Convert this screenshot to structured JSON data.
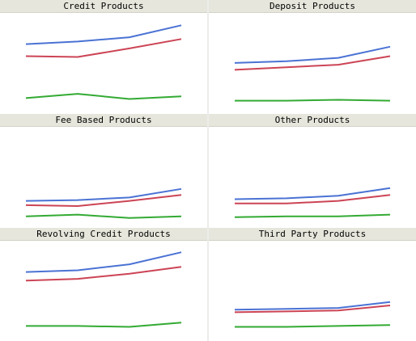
{
  "chart_data": [
    {
      "type": "line",
      "title": "Credit Products",
      "x": [
        1,
        2,
        3,
        4
      ],
      "ylim": [
        0,
        100
      ],
      "series": [
        {
          "color": "#4a72d4",
          "values": [
            73,
            76,
            81,
            95
          ]
        },
        {
          "color": "#cc4455",
          "values": [
            59,
            58,
            68,
            79
          ]
        },
        {
          "color": "#33aa33",
          "values": [
            10,
            15,
            9,
            12
          ]
        }
      ]
    },
    {
      "type": "line",
      "title": "Deposit Products",
      "x": [
        1,
        2,
        3,
        4
      ],
      "ylim": [
        0,
        100
      ],
      "series": [
        {
          "color": "#4a72d4",
          "values": [
            51,
            53,
            57,
            70
          ]
        },
        {
          "color": "#cc4455",
          "values": [
            43,
            46,
            49,
            59
          ]
        },
        {
          "color": "#33aa33",
          "values": [
            7,
            7,
            8,
            7
          ]
        }
      ]
    },
    {
      "type": "line",
      "title": "Fee Based Products",
      "x": [
        1,
        2,
        3,
        4
      ],
      "ylim": [
        0,
        100
      ],
      "series": [
        {
          "color": "#4a72d4",
          "values": [
            23,
            24,
            27,
            37
          ]
        },
        {
          "color": "#cc4455",
          "values": [
            18,
            17,
            23,
            30
          ]
        },
        {
          "color": "#33aa33",
          "values": [
            5,
            7,
            3,
            5
          ]
        }
      ]
    },
    {
      "type": "line",
      "title": "Other Products",
      "x": [
        1,
        2,
        3,
        4
      ],
      "ylim": [
        0,
        100
      ],
      "series": [
        {
          "color": "#4a72d4",
          "values": [
            25,
            26,
            29,
            38
          ]
        },
        {
          "color": "#cc4455",
          "values": [
            20,
            20,
            23,
            30
          ]
        },
        {
          "color": "#33aa33",
          "values": [
            4,
            5,
            5,
            7
          ]
        }
      ]
    },
    {
      "type": "line",
      "title": "Revolving Credit Products",
      "x": [
        1,
        2,
        3,
        4
      ],
      "ylim": [
        0,
        100
      ],
      "series": [
        {
          "color": "#4a72d4",
          "values": [
            73,
            75,
            82,
            96
          ]
        },
        {
          "color": "#cc4455",
          "values": [
            63,
            65,
            71,
            79
          ]
        },
        {
          "color": "#33aa33",
          "values": [
            10,
            10,
            9,
            14
          ]
        }
      ]
    },
    {
      "type": "line",
      "title": "Third Party Products",
      "x": [
        1,
        2,
        3,
        4
      ],
      "ylim": [
        0,
        100
      ],
      "series": [
        {
          "color": "#4a72d4",
          "values": [
            29,
            30,
            31,
            38
          ]
        },
        {
          "color": "#cc4455",
          "values": [
            26,
            27,
            28,
            34
          ]
        },
        {
          "color": "#33aa33",
          "values": [
            9,
            9,
            10,
            11
          ]
        }
      ]
    }
  ]
}
